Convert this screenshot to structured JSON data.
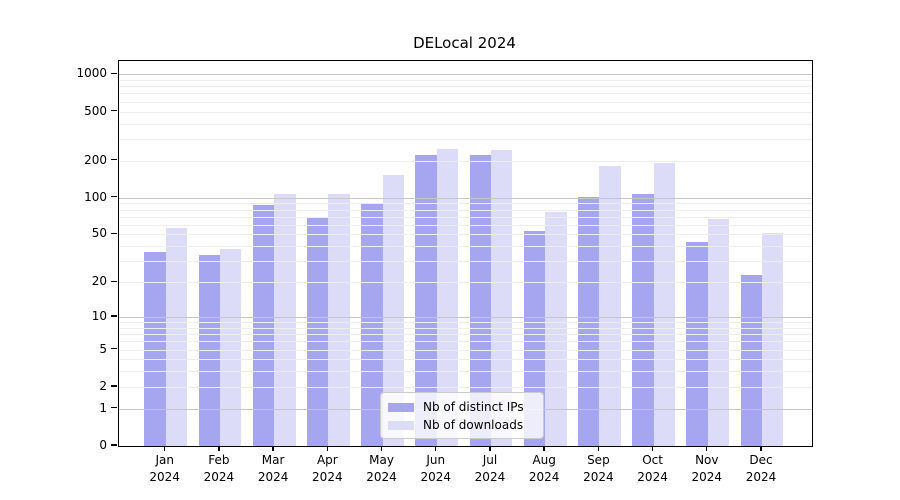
{
  "chart_data": {
    "type": "bar",
    "title": "DELocal 2024",
    "months": [
      "Jan",
      "Feb",
      "Mar",
      "Apr",
      "May",
      "Jun",
      "Jul",
      "Aug",
      "Sep",
      "Oct",
      "Nov",
      "Dec"
    ],
    "year": "2024",
    "series": [
      {
        "name": "Nb of distinct IPs",
        "color": "#a5a5f0",
        "values": [
          36,
          34,
          88,
          68,
          91,
          222,
          222,
          53,
          102,
          107,
          43,
          23
        ]
      },
      {
        "name": "Nb of downloads",
        "color": "#dcdcf8",
        "values": [
          57,
          38,
          108,
          108,
          152,
          251,
          244,
          76,
          180,
          193,
          67,
          51
        ]
      }
    ],
    "y_scale": "log1p",
    "ylim": [
      0,
      1000
    ],
    "y_ticks": [
      0,
      1,
      2,
      5,
      10,
      20,
      50,
      100,
      200,
      500,
      1000
    ],
    "grid": {
      "major": [
        1,
        10,
        100,
        1000
      ],
      "minor": [
        2,
        3,
        4,
        5,
        6,
        7,
        8,
        9,
        20,
        30,
        40,
        50,
        60,
        70,
        80,
        90,
        200,
        300,
        400,
        500,
        600,
        700,
        800,
        900
      ]
    },
    "legend_position": "bottom-center",
    "colors": {
      "major_grid": "#c6c6c6",
      "minor_grid": "#ededed",
      "axis": "#000000",
      "background": "#ffffff"
    }
  }
}
